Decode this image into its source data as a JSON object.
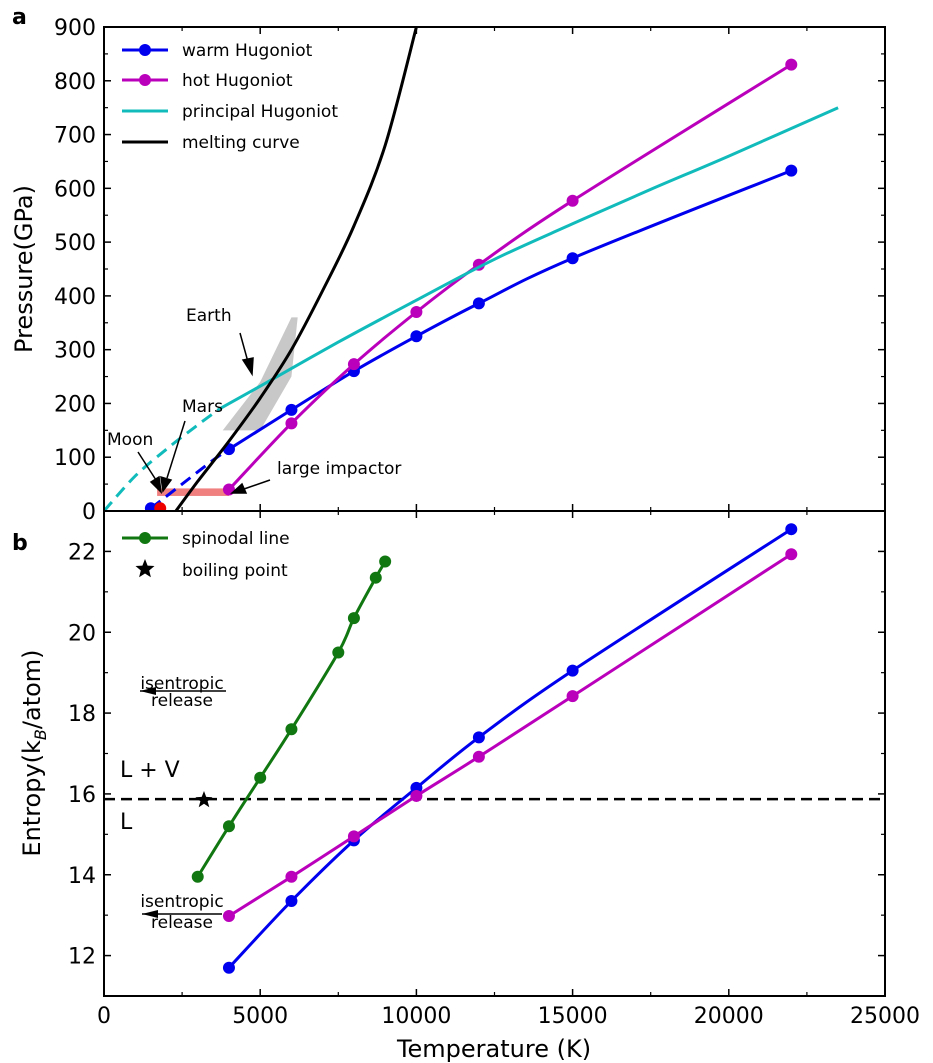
{
  "figure": {
    "panel_a_label": "a",
    "panel_b_label": "b"
  },
  "colors": {
    "warm": "#0000ee",
    "hot": "#bb00bb",
    "principal": "#11bbbb",
    "melting": "#000000",
    "spinodal": "#117711",
    "earth_band": "#c8c8c8",
    "impactor_band": "#f08080",
    "marker_red": "#ee0000"
  },
  "chart_data": [
    {
      "type": "line",
      "panel": "a",
      "ylabel": "Pressure(GPa)",
      "xlim": [
        0,
        25000
      ],
      "ylim": [
        0,
        900
      ],
      "xticks": [
        0,
        5000,
        10000,
        15000,
        20000,
        25000
      ],
      "yticks": [
        0,
        100,
        200,
        300,
        400,
        500,
        600,
        700,
        800,
        900
      ],
      "grid": false,
      "legend_position": "top-left",
      "series": [
        {
          "key": "warm",
          "name": "warm Hugoniot",
          "marker": "circle",
          "x": [
            4000,
            6000,
            8000,
            10000,
            12000,
            15000,
            22000
          ],
          "y": [
            115,
            188,
            260,
            325,
            386,
            470,
            633
          ],
          "extension_dashed": {
            "x": [
              1500,
              2500,
              3500,
              4000
            ],
            "y": [
              5,
              50,
              95,
              115
            ]
          }
        },
        {
          "key": "hot",
          "name": "hot Hugoniot",
          "marker": "circle",
          "x": [
            4000,
            6000,
            8000,
            10000,
            12000,
            15000,
            22000
          ],
          "y": [
            40,
            163,
            273,
            370,
            458,
            577,
            830
          ]
        },
        {
          "key": "principal",
          "name": "principal Hugoniot",
          "marker": "none",
          "x": [
            3700,
            5000,
            7500,
            10000,
            12500,
            15000,
            17500,
            20000,
            23500
          ],
          "y": [
            190,
            232,
            314,
            392,
            468,
            534,
            598,
            660,
            750
          ],
          "extension_dashed": {
            "x": [
              0,
              1000,
              2000,
              3000,
              3700
            ],
            "y": [
              0,
              65,
              115,
              160,
              190
            ]
          }
        },
        {
          "key": "melting",
          "name": "melting curve",
          "marker": "none",
          "x": [
            2300,
            3000,
            4000,
            5000,
            6000,
            7000,
            8000,
            9000,
            10000
          ],
          "y": [
            0,
            55,
            130,
            210,
            300,
            410,
            530,
            680,
            900
          ]
        }
      ],
      "annotations": {
        "earth": "Earth",
        "mars": "Mars",
        "moon": "Moon",
        "impactor": "large impactor",
        "earth_band": {
          "x": [
            3800,
            5000,
            6000,
            6200
          ],
          "y_low": [
            150,
            150,
            250,
            360
          ],
          "y_high": [
            150,
            240,
            360,
            360
          ]
        },
        "impactor_band": {
          "x": [
            1700,
            4000
          ],
          "y": [
            28,
            42
          ]
        },
        "red_point": {
          "x": 1800,
          "y": 5
        }
      }
    },
    {
      "type": "line",
      "panel": "b",
      "xlabel": "Temperature (K)",
      "ylabel_main": "Entropy(k",
      "ylabel_sub": "B",
      "ylabel_tail": "/atom)",
      "xlim": [
        0,
        25000
      ],
      "ylim": [
        11,
        23
      ],
      "xticks": [
        0,
        5000,
        10000,
        15000,
        20000,
        25000
      ],
      "yticks": [
        12,
        14,
        16,
        18,
        20,
        22
      ],
      "grid": false,
      "legend_position": "top-left",
      "series": [
        {
          "key": "spinodal",
          "name": "spinodal line",
          "marker": "circle",
          "x": [
            3000,
            4000,
            5000,
            6000,
            7500,
            8000,
            8700,
            9000
          ],
          "y": [
            13.95,
            15.2,
            16.4,
            17.6,
            19.5,
            20.35,
            21.35,
            21.75
          ]
        },
        {
          "key": "warm",
          "marker": "circle",
          "x": [
            4000,
            6000,
            8000,
            10000,
            12000,
            15000,
            22000
          ],
          "y": [
            11.7,
            13.35,
            14.85,
            16.15,
            17.4,
            19.05,
            22.55
          ]
        },
        {
          "key": "hot",
          "marker": "circle",
          "x": [
            4000,
            6000,
            8000,
            10000,
            12000,
            15000,
            22000
          ],
          "y": [
            12.98,
            13.95,
            14.95,
            15.95,
            16.92,
            18.42,
            21.93
          ]
        }
      ],
      "boiling_point": {
        "name": "boiling point",
        "x": 3200,
        "y": 15.85
      },
      "liquid_vapor_line_y": 15.87,
      "labels": {
        "lv": "L + V",
        "l": "L",
        "release_top_1": "isentropic",
        "release_top_2": "release",
        "release_bottom_1": "isentropic",
        "release_bottom_2": "release"
      }
    }
  ]
}
